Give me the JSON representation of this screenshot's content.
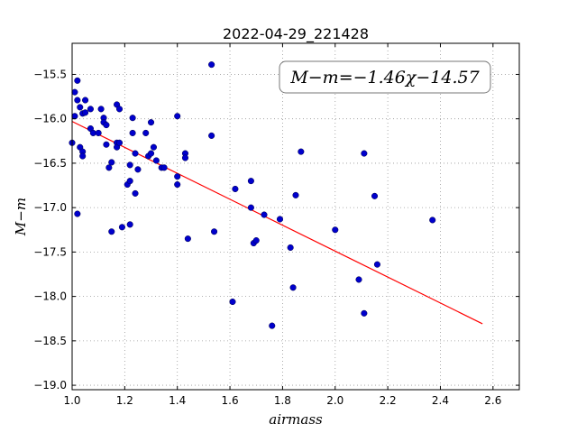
{
  "chart_data": {
    "type": "scatter",
    "title": "2022-04-29_221428",
    "xlabel": "airmass",
    "ylabel": "M−m",
    "xlim": [
      1.0,
      2.7
    ],
    "ylim": [
      -19.05,
      -15.15
    ],
    "y_inverted": true,
    "grid": true,
    "xticks": [
      1.0,
      1.2,
      1.4,
      1.6,
      1.8,
      2.0,
      2.2,
      2.4,
      2.6
    ],
    "xtick_labels": [
      "1.0",
      "1.2",
      "1.4",
      "1.6",
      "1.8",
      "2.0",
      "2.2",
      "2.4",
      "2.6"
    ],
    "yticks": [
      -15.5,
      -16.0,
      -16.5,
      -17.0,
      -17.5,
      -18.0,
      -18.5,
      -19.0
    ],
    "ytick_labels": [
      "−15.5",
      "−16.0",
      "−16.5",
      "−17.0",
      "−17.5",
      "−18.0",
      "−18.5",
      "−19.0"
    ],
    "annotation": "M−m=−1.46χ−14.57",
    "annotation_position": "top-right",
    "fit": {
      "slope": -1.46,
      "intercept": -14.57,
      "x_range": [
        1.0,
        2.56
      ],
      "color": "#ff0000"
    },
    "point_color": "#0000cc",
    "points": [
      {
        "x": 1.0,
        "y": -16.27
      },
      {
        "x": 1.01,
        "y": -15.97
      },
      {
        "x": 1.01,
        "y": -15.7
      },
      {
        "x": 1.02,
        "y": -15.57
      },
      {
        "x": 1.02,
        "y": -15.79
      },
      {
        "x": 1.02,
        "y": -17.07
      },
      {
        "x": 1.03,
        "y": -15.87
      },
      {
        "x": 1.04,
        "y": -15.94
      },
      {
        "x": 1.03,
        "y": -16.32
      },
      {
        "x": 1.04,
        "y": -16.37
      },
      {
        "x": 1.04,
        "y": -16.42
      },
      {
        "x": 1.05,
        "y": -15.79
      },
      {
        "x": 1.05,
        "y": -15.93
      },
      {
        "x": 1.07,
        "y": -15.89
      },
      {
        "x": 1.07,
        "y": -16.11
      },
      {
        "x": 1.08,
        "y": -16.16
      },
      {
        "x": 1.1,
        "y": -16.16
      },
      {
        "x": 1.11,
        "y": -15.89
      },
      {
        "x": 1.12,
        "y": -15.99
      },
      {
        "x": 1.12,
        "y": -16.04
      },
      {
        "x": 1.13,
        "y": -16.07
      },
      {
        "x": 1.13,
        "y": -16.29
      },
      {
        "x": 1.14,
        "y": -16.55
      },
      {
        "x": 1.15,
        "y": -16.49
      },
      {
        "x": 1.15,
        "y": -17.27
      },
      {
        "x": 1.17,
        "y": -15.84
      },
      {
        "x": 1.18,
        "y": -15.89
      },
      {
        "x": 1.17,
        "y": -16.27
      },
      {
        "x": 1.17,
        "y": -16.32
      },
      {
        "x": 1.18,
        "y": -16.27
      },
      {
        "x": 1.19,
        "y": -17.22
      },
      {
        "x": 1.21,
        "y": -16.74
      },
      {
        "x": 1.22,
        "y": -16.52
      },
      {
        "x": 1.22,
        "y": -16.7
      },
      {
        "x": 1.22,
        "y": -17.19
      },
      {
        "x": 1.23,
        "y": -16.16
      },
      {
        "x": 1.23,
        "y": -15.99
      },
      {
        "x": 1.24,
        "y": -16.39
      },
      {
        "x": 1.24,
        "y": -16.84
      },
      {
        "x": 1.25,
        "y": -16.57
      },
      {
        "x": 1.28,
        "y": -16.16
      },
      {
        "x": 1.29,
        "y": -16.42
      },
      {
        "x": 1.3,
        "y": -16.04
      },
      {
        "x": 1.3,
        "y": -16.39
      },
      {
        "x": 1.31,
        "y": -16.32
      },
      {
        "x": 1.32,
        "y": -16.47
      },
      {
        "x": 1.34,
        "y": -16.55
      },
      {
        "x": 1.35,
        "y": -16.55
      },
      {
        "x": 1.4,
        "y": -15.97
      },
      {
        "x": 1.4,
        "y": -16.65
      },
      {
        "x": 1.4,
        "y": -16.74
      },
      {
        "x": 1.43,
        "y": -16.39
      },
      {
        "x": 1.43,
        "y": -16.44
      },
      {
        "x": 1.44,
        "y": -17.35
      },
      {
        "x": 1.53,
        "y": -15.39
      },
      {
        "x": 1.53,
        "y": -16.19
      },
      {
        "x": 1.54,
        "y": -17.27
      },
      {
        "x": 1.61,
        "y": -18.06
      },
      {
        "x": 1.62,
        "y": -16.79
      },
      {
        "x": 1.68,
        "y": -16.7
      },
      {
        "x": 1.68,
        "y": -17.0
      },
      {
        "x": 1.69,
        "y": -17.4
      },
      {
        "x": 1.7,
        "y": -17.37
      },
      {
        "x": 1.73,
        "y": -17.08
      },
      {
        "x": 1.76,
        "y": -18.33
      },
      {
        "x": 1.79,
        "y": -17.13
      },
      {
        "x": 1.83,
        "y": -17.45
      },
      {
        "x": 1.84,
        "y": -17.9
      },
      {
        "x": 1.85,
        "y": -16.86
      },
      {
        "x": 1.87,
        "y": -16.37
      },
      {
        "x": 2.0,
        "y": -17.25
      },
      {
        "x": 2.09,
        "y": -17.81
      },
      {
        "x": 2.11,
        "y": -16.39
      },
      {
        "x": 2.11,
        "y": -18.19
      },
      {
        "x": 2.15,
        "y": -16.87
      },
      {
        "x": 2.16,
        "y": -17.64
      },
      {
        "x": 2.37,
        "y": -17.14
      }
    ]
  }
}
